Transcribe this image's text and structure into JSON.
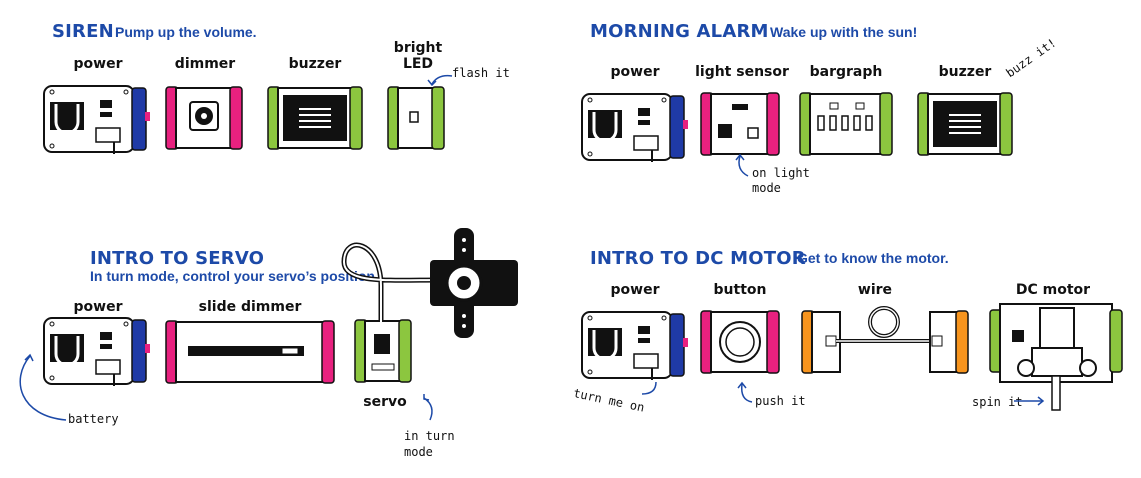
{
  "colors": {
    "title_blue": "#1d4aa8",
    "power_blue": "#1f3aa6",
    "input_pink": "#e8217f",
    "output_green": "#8cc63f",
    "wire_orange": "#f7941d",
    "outline": "#111111"
  },
  "siren": {
    "title": "SIREN",
    "subtitle": "Pump up the volume.",
    "power": "power",
    "dimmer": "dimmer",
    "buzzer": "buzzer",
    "bright_led": "bright LED",
    "flash_note": "flash it"
  },
  "alarm": {
    "title": "MORNING ALARM",
    "subtitle": "Wake up with the sun!",
    "power": "power",
    "light_sensor": "light sensor",
    "bargraph": "bargraph",
    "buzzer": "buzzer",
    "buzz_note": "buzz it!",
    "mode_note": "on light mode"
  },
  "servo": {
    "title": "INTRO TO SERVO",
    "subtitle": "In turn mode, control your servo’s position.",
    "power": "power",
    "slide_dimmer": "slide dimmer",
    "servo": "servo",
    "battery_note": "battery",
    "turn_note": "in turn mode"
  },
  "motor": {
    "title": "INTRO TO DC MOTOR",
    "subtitle": "Get to know the motor.",
    "power": "power",
    "button": "button",
    "wire": "wire",
    "dc_motor": "DC motor",
    "turn_on_note": "turn me on",
    "push_note": "push it",
    "spin_note": "spin it"
  }
}
